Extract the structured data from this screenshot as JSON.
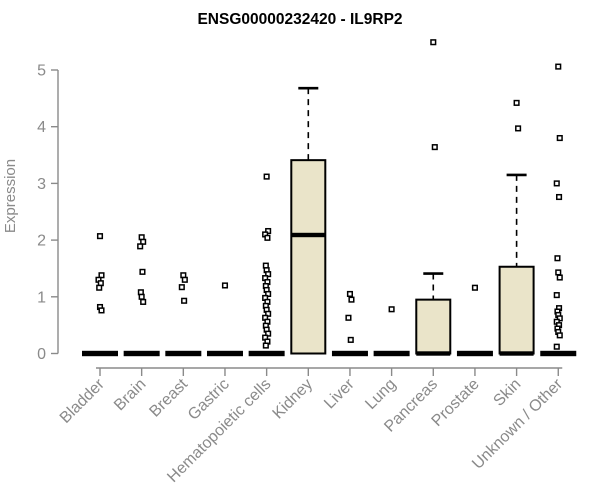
{
  "chart_data": {
    "type": "boxplot",
    "title": "ENSG00000232420 - IL9RP2",
    "xlabel": "",
    "ylabel": "Expression",
    "ylim": [
      0,
      5.6
    ],
    "yticks": [
      0,
      1,
      2,
      3,
      4,
      5
    ],
    "grid": false,
    "legend": false,
    "box_fill": "#eae4c9",
    "box_stroke": "#000000",
    "median_color": "#000000",
    "outlier_color": "#000000",
    "axis_color": "#8a8a8a",
    "label_color": "#8a8a8a",
    "title_color": "#000000",
    "categories": [
      "Bladder",
      "Brain",
      "Breast",
      "Gastric",
      "Hematopoietic cells",
      "Kidney",
      "Liver",
      "Lung",
      "Pancreas",
      "Prostate",
      "Skin",
      "Unknown / Other"
    ],
    "series": [
      {
        "category": "Bladder",
        "q1": 0,
        "median": 0,
        "q3": 0,
        "whisker_low": 0,
        "whisker_high": 0,
        "outliers": [
          2.07,
          1.38,
          1.3,
          1.24,
          1.16,
          0.82,
          0.76
        ]
      },
      {
        "category": "Brain",
        "q1": 0,
        "median": 0,
        "q3": 0,
        "whisker_low": 0,
        "whisker_high": 0,
        "outliers": [
          2.05,
          1.97,
          1.89,
          1.44,
          1.08,
          1.0,
          0.91
        ]
      },
      {
        "category": "Breast",
        "q1": 0,
        "median": 0,
        "q3": 0,
        "whisker_low": 0,
        "whisker_high": 0,
        "outliers": [
          1.38,
          1.3,
          1.17,
          0.93
        ]
      },
      {
        "category": "Gastric",
        "q1": 0,
        "median": 0,
        "q3": 0,
        "whisker_low": 0,
        "whisker_high": 0,
        "outliers": [
          1.2
        ]
      },
      {
        "category": "Hematopoietic cells",
        "q1": 0,
        "median": 0,
        "q3": 0,
        "whisker_low": 0,
        "whisker_high": 0,
        "outliers": [
          3.12,
          2.16,
          2.1,
          2.04,
          1.55,
          1.47,
          1.4,
          1.33,
          1.26,
          1.19,
          1.12,
          1.05,
          0.98,
          0.91,
          0.84,
          0.77,
          0.7,
          0.63,
          0.56,
          0.49,
          0.42,
          0.35,
          0.28,
          0.21,
          0.14
        ]
      },
      {
        "category": "Kidney",
        "q1": 0,
        "median": 2.09,
        "q3": 3.41,
        "whisker_low": 0,
        "whisker_high": 4.68,
        "outliers": []
      },
      {
        "category": "Liver",
        "q1": 0,
        "median": 0,
        "q3": 0,
        "whisker_low": 0,
        "whisker_high": 0,
        "outliers": [
          1.05,
          0.95,
          0.63,
          0.24
        ]
      },
      {
        "category": "Lung",
        "q1": 0,
        "median": 0,
        "q3": 0,
        "whisker_low": 0,
        "whisker_high": 0,
        "outliers": [
          0.78
        ]
      },
      {
        "category": "Pancreas",
        "q1": 0,
        "median": 0,
        "q3": 0.95,
        "whisker_low": 0,
        "whisker_high": 1.41,
        "outliers": [
          5.49,
          3.64
        ]
      },
      {
        "category": "Prostate",
        "q1": 0,
        "median": 0,
        "q3": 0,
        "whisker_low": 0,
        "whisker_high": 0,
        "outliers": [
          1.16
        ]
      },
      {
        "category": "Skin",
        "q1": 0,
        "median": 0,
        "q3": 1.53,
        "whisker_low": 0,
        "whisker_high": 3.15,
        "outliers": [
          4.42,
          3.97
        ]
      },
      {
        "category": "Unknown / Other",
        "q1": 0,
        "median": 0,
        "q3": 0,
        "whisker_low": 0,
        "whisker_high": 0,
        "outliers": [
          5.06,
          3.8,
          3.0,
          2.76,
          1.68,
          1.43,
          1.34,
          1.03,
          0.8,
          0.74,
          0.68,
          0.62,
          0.56,
          0.5,
          0.44,
          0.38,
          0.32,
          0.12
        ]
      }
    ]
  }
}
